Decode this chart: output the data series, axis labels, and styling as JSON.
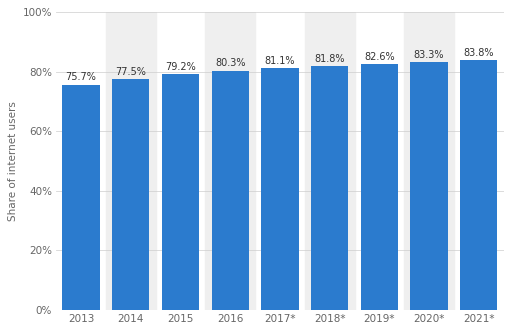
{
  "categories": [
    "2013",
    "2014",
    "2015",
    "2016",
    "2017*",
    "2018*",
    "2019*",
    "2020*",
    "2021*"
  ],
  "values": [
    75.7,
    77.5,
    79.2,
    80.3,
    81.1,
    81.8,
    82.6,
    83.3,
    83.8
  ],
  "labels": [
    "75.7%",
    "77.5%",
    "79.2%",
    "80.3%",
    "81.1%",
    "81.8%",
    "82.6%",
    "83.3%",
    "83.8%"
  ],
  "bar_color": "#2b7bce",
  "background_color": "#ffffff",
  "plot_bg_color": "#ffffff",
  "alternating_bg_color": "#efefef",
  "ylabel": "Share of internet users",
  "ylim": [
    0,
    100
  ],
  "yticks": [
    0,
    20,
    40,
    60,
    80,
    100
  ],
  "ytick_labels": [
    "0%",
    "20%",
    "40%",
    "60%",
    "80%",
    "100%"
  ],
  "grid_color": "#cccccc",
  "label_fontsize": 7,
  "tick_fontsize": 7.5,
  "ylabel_fontsize": 7.5,
  "bar_width": 0.75
}
